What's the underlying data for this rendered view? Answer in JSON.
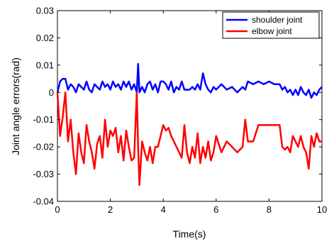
{
  "chart_data": {
    "type": "line",
    "title": "",
    "xlabel": "Time(s)",
    "ylabel": "Joint angle errors(rad)",
    "xlim": [
      0,
      10
    ],
    "ylim": [
      -0.04,
      0.03
    ],
    "x_ticks": [
      0,
      2,
      4,
      6,
      8,
      10
    ],
    "x_tick_labels": [
      "0",
      "2",
      "4",
      "6",
      "8",
      "10"
    ],
    "y_ticks": [
      -0.04,
      -0.03,
      -0.02,
      -0.01,
      0,
      0.01,
      0.02,
      0.03
    ],
    "y_tick_labels": [
      "-0.04",
      "-0.03",
      "-0.02",
      "-0.01",
      "0",
      "0.01",
      "0.02",
      "0.03"
    ],
    "grid": false,
    "legend_position": "top-right",
    "series": [
      {
        "name": "shoulder joint",
        "color": "#0000ff",
        "x": [
          0,
          0.1,
          0.2,
          0.3,
          0.4,
          0.5,
          0.6,
          0.7,
          0.8,
          0.9,
          1.0,
          1.1,
          1.2,
          1.3,
          1.4,
          1.5,
          1.6,
          1.7,
          1.8,
          1.9,
          2.0,
          2.1,
          2.2,
          2.3,
          2.4,
          2.5,
          2.6,
          2.7,
          2.8,
          2.9,
          3.0,
          3.05,
          3.1,
          3.2,
          3.3,
          3.4,
          3.5,
          3.6,
          3.7,
          3.8,
          3.9,
          4.0,
          4.1,
          4.2,
          4.3,
          4.4,
          4.5,
          4.6,
          4.7,
          4.8,
          4.9,
          5.0,
          5.1,
          5.2,
          5.3,
          5.4,
          5.5,
          5.6,
          5.7,
          5.8,
          5.9,
          6.0,
          6.2,
          6.4,
          6.6,
          6.8,
          7.0,
          7.1,
          7.2,
          7.4,
          7.6,
          7.8,
          8.0,
          8.2,
          8.4,
          8.5,
          8.6,
          8.7,
          8.8,
          8.9,
          9.0,
          9.1,
          9.2,
          9.3,
          9.4,
          9.5,
          9.6,
          9.7,
          9.8,
          9.9,
          10.0
        ],
        "y": [
          0.0,
          0.004,
          0.005,
          0.005,
          0.001,
          0.003,
          0.002,
          0.0,
          0.003,
          0.002,
          0.001,
          0.004,
          0.001,
          0.0,
          0.003,
          0.002,
          0.001,
          0.004,
          0.002,
          0.003,
          0.001,
          0.004,
          0.002,
          0.003,
          0.001,
          0.004,
          0.002,
          0.004,
          0.001,
          0.003,
          0.0,
          0.0105,
          0.0,
          0.002,
          0.0,
          0.003,
          0.004,
          0.001,
          0.003,
          0.0,
          0.004,
          0.004,
          0.003,
          0.001,
          0.004,
          0.0,
          0.002,
          0.001,
          0.004,
          0.001,
          0.001,
          0.001,
          0.002,
          0.001,
          0.003,
          0.001,
          0.007,
          0.003,
          0.001,
          0.0,
          0.002,
          0.001,
          0.003,
          0.001,
          0.002,
          0.0,
          0.002,
          0.001,
          0.004,
          0.003,
          0.004,
          0.003,
          0.004,
          0.003,
          0.003,
          0.001,
          0.002,
          0.0,
          0.001,
          -0.001,
          0.001,
          -0.001,
          0.002,
          0.0,
          -0.001,
          0.001,
          -0.002,
          0.0,
          -0.001,
          0.001,
          0.002
        ]
      },
      {
        "name": "elbow joint",
        "color": "#ff0000",
        "x": [
          0,
          0.1,
          0.2,
          0.3,
          0.4,
          0.5,
          0.6,
          0.7,
          0.8,
          0.9,
          1.0,
          1.1,
          1.2,
          1.3,
          1.4,
          1.5,
          1.6,
          1.7,
          1.8,
          1.9,
          2.0,
          2.1,
          2.2,
          2.3,
          2.4,
          2.5,
          2.6,
          2.7,
          2.8,
          2.9,
          3.0,
          3.05,
          3.1,
          3.2,
          3.3,
          3.4,
          3.5,
          3.6,
          3.7,
          3.8,
          3.9,
          4.0,
          4.1,
          4.2,
          4.3,
          4.4,
          4.5,
          4.6,
          4.7,
          4.8,
          4.9,
          5.0,
          5.1,
          5.2,
          5.3,
          5.4,
          5.5,
          5.6,
          5.7,
          5.8,
          5.9,
          6.0,
          6.2,
          6.4,
          6.6,
          6.8,
          7.0,
          7.1,
          7.2,
          7.4,
          7.6,
          7.8,
          8.0,
          8.2,
          8.4,
          8.5,
          8.6,
          8.7,
          8.8,
          8.9,
          9.0,
          9.1,
          9.2,
          9.3,
          9.4,
          9.5,
          9.6,
          9.7,
          9.8,
          9.9,
          10.0
        ],
        "y": [
          0.0,
          -0.016,
          -0.009,
          0.0,
          -0.018,
          -0.01,
          -0.022,
          -0.03,
          -0.015,
          -0.022,
          -0.026,
          -0.012,
          -0.018,
          -0.022,
          -0.028,
          -0.019,
          -0.016,
          -0.024,
          -0.01,
          -0.02,
          -0.014,
          -0.016,
          -0.013,
          -0.022,
          -0.016,
          -0.025,
          -0.014,
          -0.02,
          -0.025,
          -0.024,
          0.0,
          -0.02,
          -0.034,
          -0.018,
          -0.022,
          -0.025,
          -0.02,
          -0.026,
          -0.02,
          -0.02,
          -0.016,
          -0.012,
          -0.014,
          -0.013,
          -0.016,
          -0.018,
          -0.02,
          -0.022,
          -0.024,
          -0.012,
          -0.022,
          -0.026,
          -0.02,
          -0.024,
          -0.015,
          -0.026,
          -0.02,
          -0.024,
          -0.018,
          -0.025,
          -0.022,
          -0.016,
          -0.022,
          -0.018,
          -0.02,
          -0.022,
          -0.02,
          -0.01,
          -0.018,
          -0.018,
          -0.012,
          -0.012,
          -0.012,
          -0.012,
          -0.012,
          -0.02,
          -0.021,
          -0.02,
          -0.022,
          -0.016,
          -0.018,
          -0.02,
          -0.016,
          -0.02,
          -0.022,
          -0.028,
          -0.016,
          -0.02,
          -0.015,
          -0.018,
          -0.018
        ]
      }
    ]
  }
}
